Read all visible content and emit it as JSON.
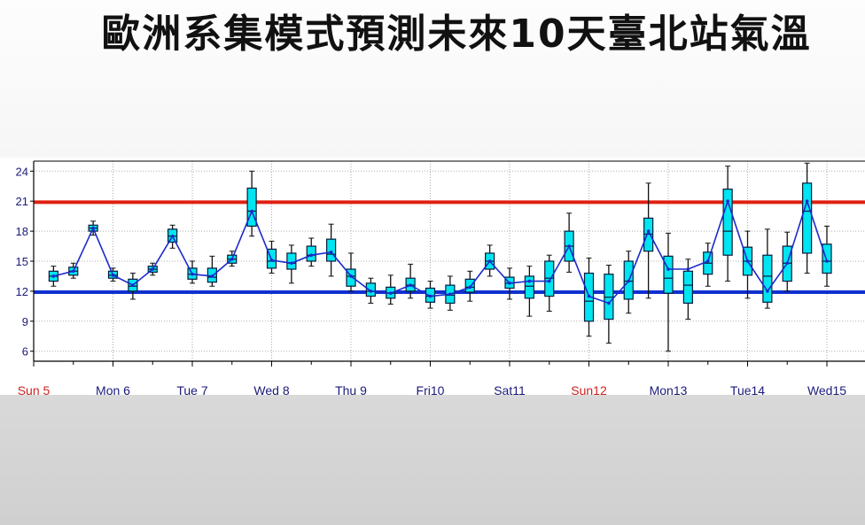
{
  "title": "歐洲系集模式預測未來10天臺北站氣溫",
  "chart_data": {
    "type": "boxplot",
    "title": "歐洲系集模式預測未來10天臺北站氣溫",
    "ylim": [
      5,
      25
    ],
    "yticks": [
      6,
      9,
      12,
      15,
      18,
      21,
      24
    ],
    "grid": true,
    "day_labels": [
      {
        "label": "Sun 5",
        "color": "#cc2222"
      },
      {
        "label": "Mon 6",
        "color": "#1a1a7a"
      },
      {
        "label": "Tue 7",
        "color": "#1a1a7a"
      },
      {
        "label": "Wed 8",
        "color": "#1a1a7a"
      },
      {
        "label": "Thu 9",
        "color": "#1a1a7a"
      },
      {
        "label": "Fri10",
        "color": "#1a1a7a"
      },
      {
        "label": "Sat11",
        "color": "#1a1a7a"
      },
      {
        "label": "Sun12",
        "color": "#cc2222"
      },
      {
        "label": "Mon13",
        "color": "#1a1a7a"
      },
      {
        "label": "Tue14",
        "color": "#1a1a7a"
      },
      {
        "label": "Wed15",
        "color": "#1a1a7a"
      }
    ],
    "reference_lines": [
      {
        "value": 20.9,
        "color": "#e02010"
      },
      {
        "value": 11.9,
        "color": "#1030d0"
      }
    ],
    "series_color": "#1a2acc",
    "box_color": "#00e5f0",
    "boxes": [
      {
        "t": 0.5,
        "min": 12.5,
        "q1": 13.0,
        "med": 13.5,
        "q3": 14.0,
        "max": 14.5,
        "mean": 13.5
      },
      {
        "t": 1.0,
        "min": 13.3,
        "q1": 13.6,
        "med": 14.0,
        "q3": 14.4,
        "max": 14.8,
        "mean": 14.0
      },
      {
        "t": 1.5,
        "min": 17.6,
        "q1": 18.0,
        "med": 18.3,
        "q3": 18.6,
        "max": 19.0,
        "mean": 18.3
      },
      {
        "t": 2.0,
        "min": 13.0,
        "q1": 13.3,
        "med": 13.6,
        "q3": 14.0,
        "max": 14.3,
        "mean": 13.6
      },
      {
        "t": 2.5,
        "min": 11.2,
        "q1": 12.0,
        "med": 12.5,
        "q3": 13.2,
        "max": 13.8,
        "mean": 12.6
      },
      {
        "t": 3.0,
        "min": 13.6,
        "q1": 13.9,
        "med": 14.2,
        "q3": 14.5,
        "max": 14.8,
        "mean": 14.2
      },
      {
        "t": 3.5,
        "min": 16.3,
        "q1": 16.9,
        "med": 17.5,
        "q3": 18.2,
        "max": 18.6,
        "mean": 17.5
      },
      {
        "t": 4.0,
        "min": 12.8,
        "q1": 13.2,
        "med": 13.7,
        "q3": 14.3,
        "max": 15.0,
        "mean": 13.7
      },
      {
        "t": 4.5,
        "min": 12.5,
        "q1": 12.9,
        "med": 13.4,
        "q3": 14.3,
        "max": 15.5,
        "mean": 13.5
      },
      {
        "t": 5.0,
        "min": 14.5,
        "q1": 14.8,
        "med": 15.2,
        "q3": 15.6,
        "max": 16.0,
        "mean": 15.2
      },
      {
        "t": 5.5,
        "min": 17.5,
        "q1": 18.5,
        "med": 20.0,
        "q3": 22.3,
        "max": 24.0,
        "mean": 20.0
      },
      {
        "t": 6.0,
        "min": 13.8,
        "q1": 14.3,
        "med": 15.0,
        "q3": 16.2,
        "max": 17.0,
        "mean": 15.1
      },
      {
        "t": 6.5,
        "min": 12.8,
        "q1": 14.2,
        "med": 14.8,
        "q3": 15.8,
        "max": 16.6,
        "mean": 14.8
      },
      {
        "t": 7.0,
        "min": 14.5,
        "q1": 15.0,
        "med": 15.6,
        "q3": 16.5,
        "max": 17.3,
        "mean": 15.6
      },
      {
        "t": 7.5,
        "min": 13.5,
        "q1": 15.0,
        "med": 15.7,
        "q3": 17.2,
        "max": 18.7,
        "mean": 15.9
      },
      {
        "t": 8.0,
        "min": 12.0,
        "q1": 12.5,
        "med": 13.5,
        "q3": 14.2,
        "max": 15.8,
        "mean": 13.5
      },
      {
        "t": 8.5,
        "min": 10.8,
        "q1": 11.5,
        "med": 12.0,
        "q3": 12.8,
        "max": 13.3,
        "mean": 12.0
      },
      {
        "t": 9.0,
        "min": 10.7,
        "q1": 11.3,
        "med": 11.8,
        "q3": 12.4,
        "max": 13.6,
        "mean": 11.8
      },
      {
        "t": 9.5,
        "min": 11.3,
        "q1": 12.0,
        "med": 12.6,
        "q3": 13.3,
        "max": 14.7,
        "mean": 12.6
      },
      {
        "t": 10.0,
        "min": 10.3,
        "q1": 10.9,
        "med": 11.5,
        "q3": 12.3,
        "max": 13.0,
        "mean": 11.5
      },
      {
        "t": 10.5,
        "min": 10.1,
        "q1": 10.8,
        "med": 11.6,
        "q3": 12.6,
        "max": 13.5,
        "mean": 11.7
      },
      {
        "t": 11.0,
        "min": 11.0,
        "q1": 11.9,
        "med": 12.4,
        "q3": 13.2,
        "max": 14.0,
        "mean": 12.4
      },
      {
        "t": 11.5,
        "min": 13.5,
        "q1": 14.2,
        "med": 15.0,
        "q3": 15.8,
        "max": 16.6,
        "mean": 15.0
      },
      {
        "t": 12.0,
        "min": 11.2,
        "q1": 12.3,
        "med": 12.8,
        "q3": 13.4,
        "max": 14.3,
        "mean": 12.8
      },
      {
        "t": 12.5,
        "min": 9.5,
        "q1": 11.3,
        "med": 12.5,
        "q3": 13.5,
        "max": 14.5,
        "mean": 13.0
      },
      {
        "t": 13.0,
        "min": 10.0,
        "q1": 11.5,
        "med": 13.3,
        "q3": 15.0,
        "max": 15.6,
        "mean": 13.0
      },
      {
        "t": 13.5,
        "min": 13.9,
        "q1": 15.0,
        "med": 16.5,
        "q3": 18.0,
        "max": 19.8,
        "mean": 16.5
      },
      {
        "t": 14.0,
        "min": 7.5,
        "q1": 9.0,
        "med": 11.0,
        "q3": 13.8,
        "max": 15.3,
        "mean": 11.5
      },
      {
        "t": 14.5,
        "min": 6.8,
        "q1": 9.2,
        "med": 11.4,
        "q3": 13.7,
        "max": 14.6,
        "mean": 10.8
      },
      {
        "t": 15.0,
        "min": 9.8,
        "q1": 11.2,
        "med": 13.0,
        "q3": 15.0,
        "max": 16.0,
        "mean": 13.0
      },
      {
        "t": 15.5,
        "min": 11.3,
        "q1": 16.0,
        "med": 17.7,
        "q3": 19.3,
        "max": 22.8,
        "mean": 18.0
      },
      {
        "t": 16.0,
        "min": 6.0,
        "q1": 11.8,
        "med": 13.3,
        "q3": 15.5,
        "max": 17.8,
        "mean": 14.2
      },
      {
        "t": 16.5,
        "min": 9.2,
        "q1": 10.8,
        "med": 12.6,
        "q3": 14.0,
        "max": 15.2,
        "mean": 14.2
      },
      {
        "t": 17.0,
        "min": 12.5,
        "q1": 13.7,
        "med": 14.8,
        "q3": 15.9,
        "max": 16.8,
        "mean": 15.0
      },
      {
        "t": 17.5,
        "min": 13.0,
        "q1": 15.6,
        "med": 18.0,
        "q3": 22.2,
        "max": 24.5,
        "mean": 21.0
      },
      {
        "t": 18.0,
        "min": 11.3,
        "q1": 13.6,
        "med": 15.0,
        "q3": 16.4,
        "max": 18.0,
        "mean": 15.0
      },
      {
        "t": 18.5,
        "min": 10.3,
        "q1": 10.9,
        "med": 13.5,
        "q3": 15.6,
        "max": 18.2,
        "mean": 12.0
      },
      {
        "t": 19.0,
        "min": 12.0,
        "q1": 13.0,
        "med": 14.8,
        "q3": 16.5,
        "max": 17.9,
        "mean": 14.8
      },
      {
        "t": 19.5,
        "min": 13.8,
        "q1": 15.8,
        "med": 20.0,
        "q3": 22.8,
        "max": 24.8,
        "mean": 21.0
      },
      {
        "t": 20.0,
        "min": 12.5,
        "q1": 13.8,
        "med": 15.0,
        "q3": 16.7,
        "max": 18.5,
        "mean": 15.0
      }
    ]
  }
}
